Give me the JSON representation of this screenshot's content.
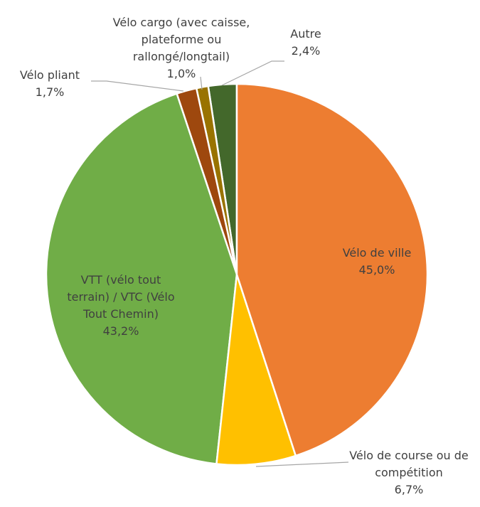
{
  "chart_data": {
    "type": "pie",
    "categories": [
      "Vélo de ville",
      "Vélo de course ou de compétition",
      "VTT (vélo tout terrain) / VTC (Vélo Tout Chemin)",
      "Vélo pliant",
      "Vélo cargo (avec caisse, plateforme ou rallongé/longtail)",
      "Autre"
    ],
    "values": [
      45.0,
      6.7,
      43.2,
      1.7,
      1.0,
      2.4
    ],
    "value_labels": [
      "45,0%",
      "6,7%",
      "43,2%",
      "1,7%",
      "1,0%",
      "2,4%"
    ],
    "colors": [
      "#ED7D31",
      "#FFC000",
      "#70AD47",
      "#9E480E",
      "#997300",
      "#43682B"
    ]
  }
}
